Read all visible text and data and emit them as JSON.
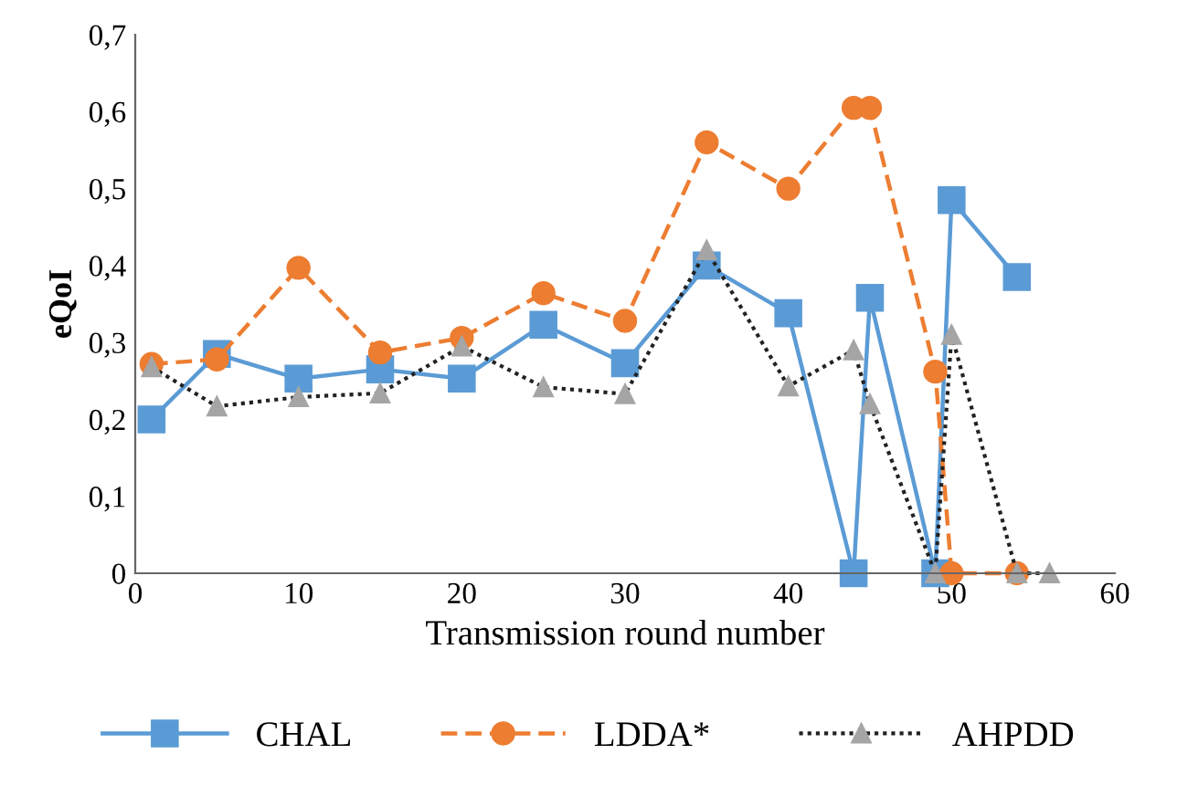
{
  "chart_data": {
    "type": "line",
    "xlabel": "Transmission round number",
    "ylabel": "eQoI",
    "xlim": [
      0,
      60
    ],
    "xticks": [
      0,
      10,
      20,
      30,
      40,
      50,
      60
    ],
    "ylim": [
      0,
      0.7
    ],
    "yticks": [
      {
        "value": 0,
        "label": "0"
      },
      {
        "value": 0.1,
        "label": "0,1"
      },
      {
        "value": 0.2,
        "label": "0,2"
      },
      {
        "value": 0.3,
        "label": "0,3"
      },
      {
        "value": 0.4,
        "label": "0,4"
      },
      {
        "value": 0.5,
        "label": "0,5"
      },
      {
        "value": 0.6,
        "label": "0,6"
      },
      {
        "value": 0.7,
        "label": "0,7"
      }
    ],
    "grid": false,
    "legend": "bottom",
    "series": [
      {
        "name": "CHAL",
        "color": "#5b9bd5",
        "marker": "square",
        "line_style": "solid",
        "x": [
          1,
          5,
          10,
          15,
          20,
          25,
          30,
          35,
          40,
          44,
          45,
          49,
          50,
          54
        ],
        "values": [
          0.2,
          0.285,
          0.253,
          0.265,
          0.253,
          0.323,
          0.273,
          0.4,
          0.338,
          0,
          0.358,
          0,
          0.485,
          0.385
        ]
      },
      {
        "name": "LDDA*",
        "color": "#ed7d31",
        "marker": "circle",
        "line_style": "dashed",
        "x": [
          1,
          5,
          10,
          15,
          20,
          25,
          30,
          35,
          40,
          44,
          45,
          49,
          50,
          54
        ],
        "values": [
          0.272,
          0.278,
          0.397,
          0.287,
          0.306,
          0.364,
          0.328,
          0.56,
          0.5,
          0.605,
          0.605,
          0.262,
          0,
          0
        ]
      },
      {
        "name": "AHPDD",
        "color": "#a5a5a5",
        "marker": "triangle",
        "line_style": "dotted",
        "x": [
          1,
          5,
          10,
          15,
          20,
          25,
          30,
          35,
          40,
          44,
          45,
          49,
          50,
          54,
          56
        ],
        "values": [
          0.268,
          0.217,
          0.229,
          0.234,
          0.295,
          0.242,
          0.233,
          0.42,
          0.243,
          0.29,
          0.22,
          0,
          0.31,
          0,
          0
        ]
      }
    ]
  }
}
